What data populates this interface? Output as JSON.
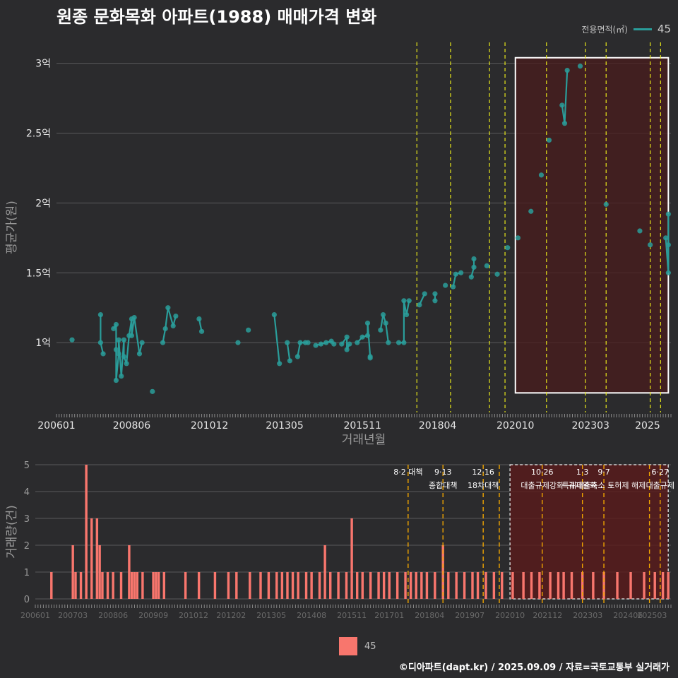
{
  "title": "원종 문화목화 아파트(1988) 매매가격 변화",
  "legend_top": {
    "label": "전용면적(㎡)",
    "value": "45"
  },
  "legend_bottom": {
    "value": "45"
  },
  "credit": "©디아파트(dapt.kr) / 2025.09.09 / 자료=국토교통부 실거래가",
  "colors": {
    "background": "#2b2b2d",
    "line": "#2a9d9a",
    "bar": "#f8766d",
    "policy_top": "#e8e81a",
    "policy_bottom": "#f0a500",
    "highlight_fill": "#4a1c1c"
  },
  "chart_data": [
    {
      "type": "line",
      "xlabel": "거래년월",
      "ylabel": "평균가(원)",
      "x_ticks": [
        "200601",
        "200806",
        "201012",
        "201305",
        "201511",
        "201804",
        "202010",
        "202303",
        "2025"
      ],
      "y_ticks": [
        "1억",
        "1.5억",
        "2억",
        "2.5억",
        "3억"
      ],
      "ylim": [
        0.5,
        3.15
      ],
      "series": [
        {
          "name": "45",
          "points": [
            [
              "2006-07",
              1.02
            ],
            [
              "2007-06",
              1.2
            ],
            [
              "2007-06",
              1.0
            ],
            [
              "2007-07",
              0.92
            ],
            [
              "2007-11",
              1.1
            ],
            [
              "2007-12",
              1.13
            ],
            [
              "2007-12",
              0.95
            ],
            [
              "2008-01",
              0.92
            ],
            [
              "2008-01",
              1.02
            ],
            [
              "2007-12",
              0.73
            ],
            [
              "2008-02",
              0.76
            ],
            [
              "2008-03",
              1.02
            ],
            [
              "2008-03",
              0.9
            ],
            [
              "2008-04",
              0.85
            ],
            [
              "2008-05",
              1.05
            ],
            [
              "2008-06",
              1.17
            ],
            [
              "2008-07",
              1.18
            ],
            [
              "2008-06",
              1.05
            ],
            [
              "2008-09",
              0.92
            ],
            [
              "2008-10",
              1.0
            ],
            [
              "2009-02",
              0.65
            ],
            [
              "2009-06",
              1.0
            ],
            [
              "2009-07",
              1.1
            ],
            [
              "2009-08",
              1.25
            ],
            [
              "2009-10",
              1.12
            ],
            [
              "2009-11",
              1.19
            ],
            [
              "2010-08",
              1.17
            ],
            [
              "2010-09",
              1.08
            ],
            [
              "2011-11",
              1.0
            ],
            [
              "2012-03",
              1.09
            ],
            [
              "2013-01",
              1.2
            ],
            [
              "2013-03",
              0.85
            ],
            [
              "2013-06",
              1.0
            ],
            [
              "2013-07",
              0.87
            ],
            [
              "2013-10",
              0.9
            ],
            [
              "2013-11",
              1.0
            ],
            [
              "2014-01",
              1.0
            ],
            [
              "2014-02",
              1.0
            ],
            [
              "2014-05",
              0.98
            ],
            [
              "2014-07",
              0.99
            ],
            [
              "2014-09",
              1.0
            ],
            [
              "2014-11",
              1.01
            ],
            [
              "2014-12",
              0.99
            ],
            [
              "2015-03",
              0.99
            ],
            [
              "2015-05",
              1.04
            ],
            [
              "2015-05",
              0.95
            ],
            [
              "2015-06",
              0.99
            ],
            [
              "2015-09",
              1.0
            ],
            [
              "2015-11",
              1.04
            ],
            [
              "2016-01",
              1.05
            ],
            [
              "2016-01",
              1.14
            ],
            [
              "2016-02",
              0.9
            ],
            [
              "2016-02",
              0.89
            ],
            [
              "2016-06",
              1.09
            ],
            [
              "2016-07",
              1.2
            ],
            [
              "2016-08",
              1.14
            ],
            [
              "2016-09",
              1.0
            ],
            [
              "2017-01",
              1.0
            ],
            [
              "2017-03",
              1.0
            ],
            [
              "2017-03",
              1.3
            ],
            [
              "2017-04",
              1.2
            ],
            [
              "2017-05",
              1.3
            ],
            [
              "2017-09",
              1.27
            ],
            [
              "2017-11",
              1.35
            ],
            [
              "2018-03",
              1.3
            ],
            [
              "2018-03",
              1.35
            ],
            [
              "2018-07",
              1.41
            ],
            [
              "2018-10",
              1.4
            ],
            [
              "2018-11",
              1.49
            ],
            [
              "2019-01",
              1.5
            ],
            [
              "2019-05",
              1.47
            ],
            [
              "2019-06",
              1.54
            ],
            [
              "2019-06",
              1.6
            ],
            [
              "2019-11",
              1.55
            ],
            [
              "2020-03",
              1.49
            ],
            [
              "2020-07",
              1.68
            ],
            [
              "2020-11",
              1.75
            ],
            [
              "2021-04",
              1.94
            ],
            [
              "2021-08",
              2.2
            ],
            [
              "2021-11",
              2.45
            ],
            [
              "2022-04",
              2.7
            ],
            [
              "2022-05",
              2.57
            ],
            [
              "2022-06",
              2.95
            ],
            [
              "2022-11",
              2.98
            ],
            [
              "2023-09",
              1.99
            ],
            [
              "2024-10",
              1.8
            ],
            [
              "2025-02",
              1.7
            ],
            [
              "2025-08",
              1.75
            ],
            [
              "2025-09",
              1.5
            ],
            [
              "2025-09",
              1.7
            ],
            [
              "2025-09",
              1.92
            ]
          ]
        }
      ]
    },
    {
      "type": "bar",
      "ylabel": "거래량(건)",
      "x_ticks": [
        "200601",
        "200703",
        "200806",
        "200909",
        "201012",
        "201202",
        "201305",
        "201408",
        "201511",
        "201701",
        "201804",
        "201907",
        "202010",
        "202112",
        "202303",
        "202406",
        "202503"
      ],
      "y_ticks": [
        "0",
        "1",
        "2",
        "3",
        "4",
        "5"
      ],
      "ylim": [
        0,
        5
      ],
      "series": [
        {
          "name": "45",
          "bars": [
            [
              "2006-07",
              1
            ],
            [
              "2007-03",
              2
            ],
            [
              "2007-04",
              1
            ],
            [
              "2007-06",
              1
            ],
            [
              "2007-08",
              5
            ],
            [
              "2007-10",
              3
            ],
            [
              "2007-12",
              3
            ],
            [
              "2008-01",
              2
            ],
            [
              "2008-02",
              1
            ],
            [
              "2008-04",
              1
            ],
            [
              "2008-06",
              1
            ],
            [
              "2008-09",
              1
            ],
            [
              "2008-12",
              2
            ],
            [
              "2009-01",
              1
            ],
            [
              "2009-02",
              1
            ],
            [
              "2009-03",
              1
            ],
            [
              "2009-05",
              1
            ],
            [
              "2009-09",
              1
            ],
            [
              "2009-10",
              1
            ],
            [
              "2009-11",
              1
            ],
            [
              "2010-01",
              1
            ],
            [
              "2010-09",
              1
            ],
            [
              "2011-02",
              1
            ],
            [
              "2011-08",
              1
            ],
            [
              "2012-01",
              1
            ],
            [
              "2012-04",
              1
            ],
            [
              "2012-09",
              1
            ],
            [
              "2013-01",
              1
            ],
            [
              "2013-04",
              1
            ],
            [
              "2013-07",
              1
            ],
            [
              "2013-09",
              1
            ],
            [
              "2013-11",
              1
            ],
            [
              "2014-01",
              1
            ],
            [
              "2014-03",
              1
            ],
            [
              "2014-06",
              1
            ],
            [
              "2014-08",
              1
            ],
            [
              "2014-11",
              1
            ],
            [
              "2015-01",
              2
            ],
            [
              "2015-03",
              1
            ],
            [
              "2015-06",
              1
            ],
            [
              "2015-09",
              1
            ],
            [
              "2015-11",
              3
            ],
            [
              "2016-01",
              1
            ],
            [
              "2016-03",
              1
            ],
            [
              "2016-06",
              1
            ],
            [
              "2016-09",
              1
            ],
            [
              "2016-11",
              1
            ],
            [
              "2017-01",
              1
            ],
            [
              "2017-04",
              1
            ],
            [
              "2017-07",
              1
            ],
            [
              "2017-09",
              1
            ],
            [
              "2017-11",
              1
            ],
            [
              "2018-01",
              1
            ],
            [
              "2018-03",
              1
            ],
            [
              "2018-06",
              1
            ],
            [
              "2018-09",
              2
            ],
            [
              "2018-11",
              1
            ],
            [
              "2019-02",
              1
            ],
            [
              "2019-05",
              1
            ],
            [
              "2019-08",
              1
            ],
            [
              "2019-10",
              1
            ],
            [
              "2020-01",
              1
            ],
            [
              "2020-04",
              1
            ],
            [
              "2020-07",
              1
            ],
            [
              "2020-11",
              1
            ],
            [
              "2021-03",
              1
            ],
            [
              "2021-06",
              1
            ],
            [
              "2021-09",
              1
            ],
            [
              "2022-01",
              1
            ],
            [
              "2022-04",
              1
            ],
            [
              "2022-06",
              1
            ],
            [
              "2022-09",
              1
            ],
            [
              "2023-01",
              1
            ],
            [
              "2023-05",
              1
            ],
            [
              "2023-09",
              1
            ],
            [
              "2024-02",
              1
            ],
            [
              "2024-07",
              1
            ],
            [
              "2024-12",
              1
            ],
            [
              "2025-04",
              1
            ],
            [
              "2025-07",
              1
            ],
            [
              "2025-09",
              1
            ]
          ]
        }
      ]
    }
  ],
  "policies": [
    {
      "date": "2017-08",
      "label_a": "8·2 대책",
      "label_b": ""
    },
    {
      "date": "2018-09",
      "label_a": "9·13",
      "label_b": "종합대책"
    },
    {
      "date": "2019-12",
      "label_a": "12·16",
      "label_b": "18차대책"
    },
    {
      "date": "2020-06",
      "label_a": "",
      "label_b": ""
    },
    {
      "date": "2021-10",
      "label_a": "10·26",
      "label_b": "대출규제강화"
    },
    {
      "date": "2023-01",
      "label_a": "1·3",
      "label_b": "규제완화"
    },
    {
      "date": "2023-09",
      "label_a": "9·7",
      "label_b": "특례대출축소 토허제 해제"
    },
    {
      "date": "2025-02",
      "label_a": "",
      "label_b": ""
    },
    {
      "date": "2025-06",
      "label_a": "6·27",
      "label_b": "대출규제"
    }
  ],
  "highlight_range": [
    "2020-10",
    "2025-09"
  ]
}
